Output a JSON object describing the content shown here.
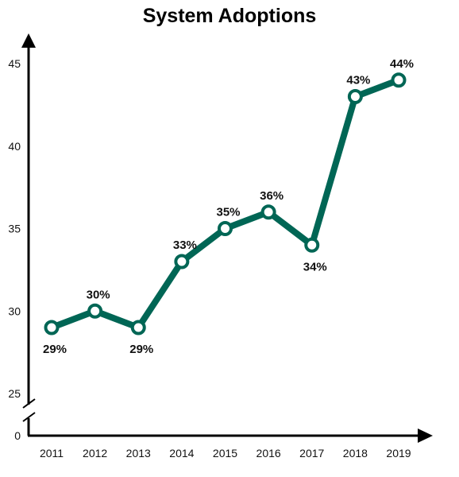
{
  "chart_data": {
    "type": "line",
    "title": "System Adoptions",
    "xlabel": "",
    "ylabel": "",
    "categories": [
      "2011",
      "2012",
      "2013",
      "2014",
      "2015",
      "2016",
      "2017",
      "2018",
      "2019"
    ],
    "values": [
      29,
      30,
      29,
      33,
      35,
      36,
      34,
      43,
      44
    ],
    "data_labels": [
      "29%",
      "30%",
      "29%",
      "33%",
      "35%",
      "36%",
      "34%",
      "43%",
      "44%"
    ],
    "ylim": [
      25,
      45
    ],
    "y_ticks": [
      25,
      30,
      35,
      40,
      45
    ],
    "y_axis_break": true,
    "y_axis_origin_label": "0",
    "grid": false,
    "legend": "none",
    "line_color": "#006655"
  }
}
